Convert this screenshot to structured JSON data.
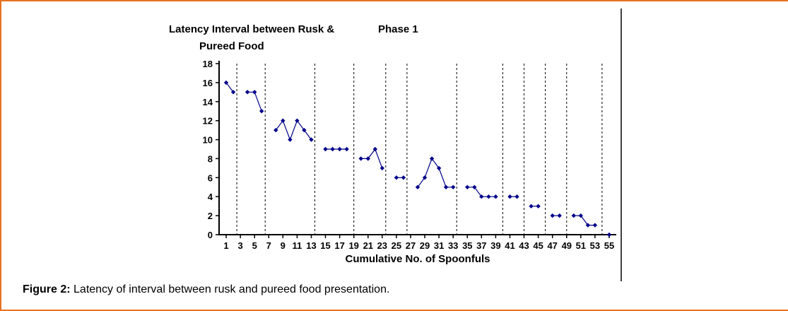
{
  "page": {
    "border_color": "#E87222",
    "caption": {
      "prefix": "Figure 2:",
      "text": "Latency of interval between rusk and pureed food presentation."
    }
  },
  "chart_data": {
    "type": "line",
    "title": "Latency Interval between Rusk & Pureed Food",
    "title_lines": [
      "Latency Interval between Rusk &",
      "Pureed Food"
    ],
    "annotation": "Phase 1",
    "xlabel": "Cumulative No. of Spoonfuls",
    "ylabel": "Latency Interval between Rusk & Pureed Food",
    "xlim": [
      0,
      56
    ],
    "ylim": [
      0,
      18
    ],
    "xticks": [
      1,
      3,
      5,
      7,
      9,
      11,
      13,
      15,
      17,
      19,
      21,
      23,
      25,
      27,
      29,
      31,
      33,
      35,
      37,
      39,
      41,
      43,
      45,
      47,
      49,
      51,
      53,
      55
    ],
    "yticks": [
      0,
      2,
      4,
      6,
      8,
      10,
      12,
      14,
      16,
      18
    ],
    "grid": false,
    "legend": false,
    "series_color": "#00008B",
    "marker": "diamond",
    "session_boundaries_x": [
      2.5,
      6.5,
      13.5,
      19,
      23.5,
      26.5,
      33.5,
      40,
      43,
      46,
      49,
      54
    ],
    "segments": [
      {
        "points": [
          [
            1,
            16
          ],
          [
            2,
            15
          ]
        ]
      },
      {
        "points": [
          [
            4,
            15
          ],
          [
            5,
            15
          ],
          [
            6,
            13
          ]
        ]
      },
      {
        "points": [
          [
            8,
            11
          ],
          [
            9,
            12
          ],
          [
            10,
            10
          ],
          [
            11,
            12
          ],
          [
            12,
            11
          ],
          [
            13,
            10
          ]
        ]
      },
      {
        "points": [
          [
            15,
            9
          ],
          [
            16,
            9
          ],
          [
            17,
            9
          ],
          [
            18,
            9
          ]
        ]
      },
      {
        "points": [
          [
            20,
            8
          ],
          [
            21,
            8
          ],
          [
            22,
            9
          ],
          [
            23,
            7
          ]
        ]
      },
      {
        "points": [
          [
            25,
            6
          ],
          [
            26,
            6
          ]
        ]
      },
      {
        "points": [
          [
            28,
            5
          ],
          [
            29,
            6
          ],
          [
            30,
            8
          ],
          [
            31,
            7
          ],
          [
            32,
            5
          ],
          [
            33,
            5
          ]
        ]
      },
      {
        "points": [
          [
            35,
            5
          ],
          [
            36,
            5
          ],
          [
            37,
            4
          ],
          [
            38,
            4
          ],
          [
            39,
            4
          ]
        ]
      },
      {
        "points": [
          [
            41,
            4
          ],
          [
            42,
            4
          ]
        ]
      },
      {
        "points": [
          [
            44,
            3
          ],
          [
            45,
            3
          ]
        ]
      },
      {
        "points": [
          [
            47,
            2
          ],
          [
            48,
            2
          ]
        ]
      },
      {
        "points": [
          [
            50,
            2
          ],
          [
            51,
            2
          ],
          [
            52,
            1
          ],
          [
            53,
            1
          ]
        ]
      },
      {
        "points": [
          [
            55,
            0
          ]
        ]
      }
    ]
  }
}
